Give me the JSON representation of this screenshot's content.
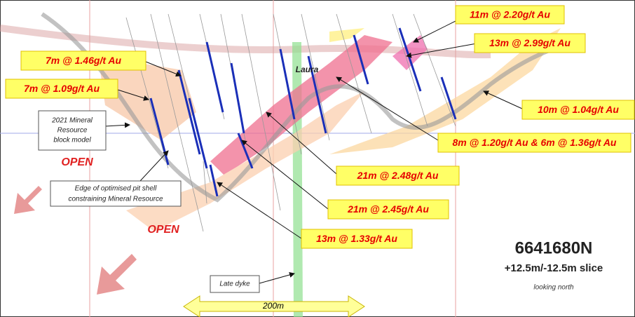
{
  "intercepts": [
    "11m @ 2.20g/t Au",
    "13m @ 2.99g/t Au",
    "7m @ 1.46g/t Au",
    "7m @ 1.09g/t Au",
    "10m @ 1.04g/t Au",
    "8m @ 1.20g/t Au & 6m @ 1.36g/t Au",
    "21m @ 2.48g/t Au",
    "21m @ 2.45g/t Au",
    "13m @ 1.33g/t Au"
  ],
  "annotations": {
    "block_model": [
      "2021 Mineral",
      "Resource",
      "block model"
    ],
    "pit_shell": [
      "Edge of optimised pit shell",
      "constraining Mineral Resource"
    ],
    "late_dyke": "Late dyke",
    "laura": "Laura",
    "open": [
      "OPEN",
      "OPEN"
    ],
    "scale": "200m"
  },
  "section": {
    "northing": "6641680N",
    "slice": "+12.5m/-12.5m slice",
    "view": "looking north"
  }
}
